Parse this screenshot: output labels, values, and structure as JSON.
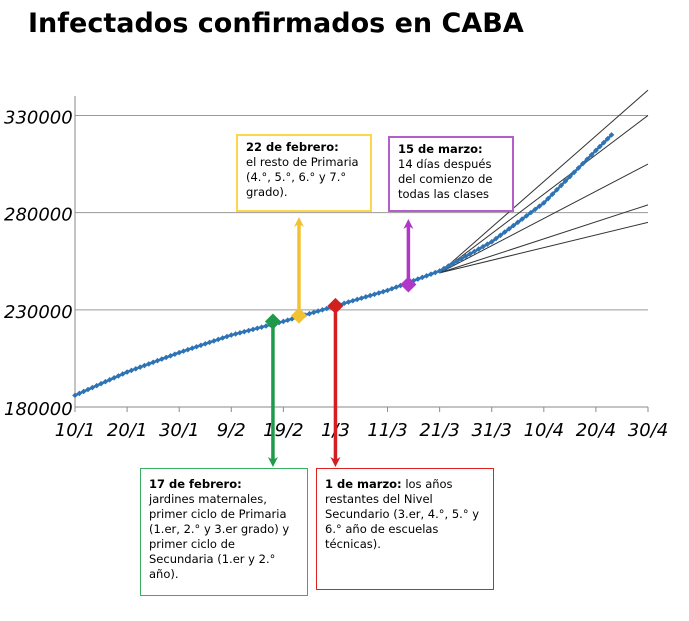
{
  "title": "Infectados confirmados en CABA",
  "chart_data": {
    "type": "line",
    "title": "Infectados confirmados en CABA",
    "xlabel": "",
    "ylabel": "",
    "x_ticks": [
      "10/1",
      "20/1",
      "30/1",
      "9/2",
      "19/2",
      "1/3",
      "11/3",
      "21/3",
      "31/3",
      "10/4",
      "20/4",
      "30/4"
    ],
    "y_ticks": [
      180000,
      230000,
      280000,
      330000
    ],
    "ylim": [
      180000,
      340000
    ],
    "grid": "horizontal",
    "series": [
      {
        "name": "",
        "style": "observed-diamonds",
        "color": "#2e74b5",
        "points": [
          [
            "10/1",
            186000
          ],
          [
            "20/1",
            198000
          ],
          [
            "30/1",
            208000
          ],
          [
            "9/2",
            217000
          ],
          [
            "19/2",
            224000
          ],
          [
            "1/3",
            232000
          ],
          [
            "11/3",
            240000
          ],
          [
            "21/3",
            250000
          ],
          [
            "31/3",
            265000
          ],
          [
            "10/4",
            285000
          ],
          [
            "20/4",
            312000
          ],
          [
            "23/4",
            320000
          ]
        ]
      }
    ],
    "projections": [
      {
        "from": [
          "21/3",
          249000
        ],
        "to": [
          "30/4",
          343000
        ]
      },
      {
        "from": [
          "21/3",
          249000
        ],
        "to": [
          "30/4",
          330000
        ]
      },
      {
        "from": [
          "21/3",
          249000
        ],
        "to": [
          "30/4",
          305000
        ]
      },
      {
        "from": [
          "21/3",
          249000
        ],
        "to": [
          "30/4",
          284000
        ]
      },
      {
        "from": [
          "21/3",
          249000
        ],
        "to": [
          "30/4",
          275000
        ]
      }
    ],
    "markers": [
      {
        "id": "feb17",
        "x": "17/2",
        "y": 224000,
        "color": "#1f9a4a"
      },
      {
        "id": "feb22",
        "x": "22/2",
        "y": 227000,
        "color": "#f2c232"
      },
      {
        "id": "mar1",
        "x": "1/3",
        "y": 232000,
        "color": "#d21f1f"
      },
      {
        "id": "mar15",
        "x": "15/3",
        "y": 243000,
        "color": "#b037c8"
      }
    ]
  },
  "annotations": {
    "feb22": {
      "heading": "22 de febrero:",
      "body": " el resto de Primaria (4.°, 5.°, 6.° y 7.° grado)."
    },
    "mar15": {
      "heading": "15 de marzo:",
      "body": "14 días después del comienzo de todas las clases"
    },
    "feb17": {
      "heading": "17 de febrero:",
      "body": " jardines maternales, primer ciclo de Primaria (1.er, 2.° y 3.er grado) y primer ciclo de Secundaria (1.er y 2.° año)."
    },
    "mar1": {
      "heading": "1 de marzo:",
      "body": " los años restantes del Nivel Secundario (3.er, 4.°, 5.° y 6.° año de escuelas técnicas)."
    }
  }
}
